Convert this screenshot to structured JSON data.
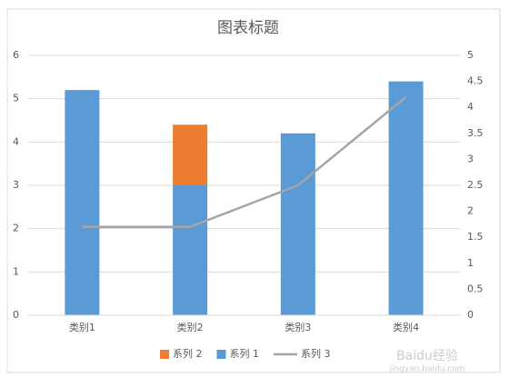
{
  "chart_data": {
    "type": "bar",
    "title": "图表标题",
    "categories": [
      "类别1",
      "类别2",
      "类别3",
      "类别4"
    ],
    "stacked": true,
    "series": [
      {
        "name": "系列 1",
        "color": "#5b9bd5",
        "values": [
          5.2,
          3,
          4.2,
          5.4
        ]
      },
      {
        "name": "系列 2",
        "color": "#ed7d31",
        "values": [
          null,
          1.4,
          null,
          null
        ]
      },
      {
        "name": "系列 3",
        "color": "#a5a5a5",
        "type": "line",
        "axis": "y2",
        "values": [
          1.7,
          1.7,
          2.5,
          4.2
        ]
      }
    ],
    "ylim": [
      0,
      6
    ],
    "yticks": [
      0,
      1,
      2,
      3,
      4,
      5,
      6
    ],
    "y2lim": [
      0,
      5
    ],
    "y2ticks": [
      0,
      0.5,
      1,
      1.5,
      2,
      2.5,
      3,
      3.5,
      4,
      4.5,
      5
    ],
    "grid": true,
    "legend": "bottom",
    "watermark": [
      "Baidu经验",
      "jingyan.baidu.com"
    ]
  }
}
